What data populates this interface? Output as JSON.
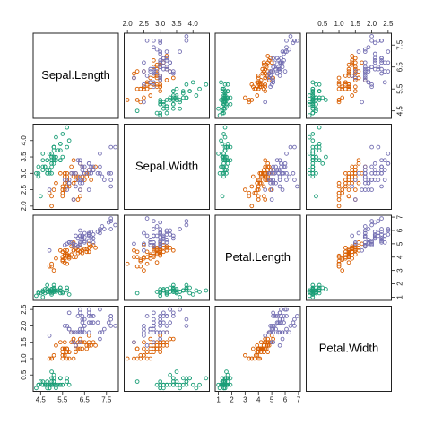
{
  "chart_data": {
    "type": "scatter_matrix",
    "variables": [
      "Sepal.Length",
      "Sepal.Width",
      "Petal.Length",
      "Petal.Width"
    ],
    "lims": [
      [
        4.16,
        8.04
      ],
      [
        1.9,
        4.5
      ],
      [
        0.76,
        7.14
      ],
      [
        0,
        2.6
      ]
    ],
    "ticks": [
      [
        4.5,
        5.5,
        6.5,
        7.5
      ],
      [
        {
          "value": 2,
          "label": "2.0"
        },
        2.5,
        {
          "value": 3,
          "label": "3.0"
        },
        3.5,
        {
          "value": 4,
          "label": "4.0"
        }
      ],
      [
        1,
        2,
        3,
        4,
        5,
        6,
        7
      ],
      [
        0.5,
        {
          "value": 1,
          "label": "1.0"
        },
        1.5,
        {
          "value": 2,
          "label": "2.0"
        },
        2.5
      ]
    ],
    "series": [
      {
        "color": "#1b9e77",
        "values": [
          [
            5.1,
            4.9,
            4.7,
            4.6,
            5.0,
            5.4,
            4.6,
            5.0,
            4.4,
            4.9,
            5.4,
            4.8,
            4.8,
            4.3,
            5.8,
            5.7,
            5.4,
            5.1,
            5.7,
            5.1,
            5.4,
            5.1,
            4.6,
            5.1,
            4.8,
            5.0,
            5.0,
            5.2,
            5.2,
            4.7,
            4.8,
            5.4,
            5.2,
            5.5,
            4.9,
            5.0,
            5.5,
            4.9,
            4.4,
            5.1,
            5.0,
            4.5,
            4.4,
            5.0,
            5.1,
            4.8,
            5.1,
            4.6,
            5.3,
            5.0
          ],
          [
            3.5,
            3.0,
            3.2,
            3.1,
            3.6,
            3.9,
            3.4,
            3.4,
            2.9,
            3.1,
            3.7,
            3.4,
            3.0,
            3.0,
            4.0,
            4.4,
            3.9,
            3.5,
            3.8,
            3.8,
            3.4,
            3.7,
            3.6,
            3.3,
            3.4,
            3.0,
            3.4,
            3.5,
            3.4,
            3.2,
            3.1,
            3.4,
            4.1,
            4.2,
            3.1,
            3.2,
            3.5,
            3.6,
            3.0,
            3.4,
            3.5,
            2.3,
            3.2,
            3.5,
            3.8,
            3.0,
            3.8,
            3.2,
            3.7,
            3.3
          ],
          [
            1.4,
            1.4,
            1.3,
            1.5,
            1.4,
            1.7,
            1.4,
            1.5,
            1.4,
            1.5,
            1.5,
            1.6,
            1.4,
            1.1,
            1.2,
            1.5,
            1.3,
            1.4,
            1.7,
            1.5,
            1.7,
            1.5,
            1.0,
            1.7,
            1.9,
            1.6,
            1.6,
            1.5,
            1.4,
            1.6,
            1.6,
            1.5,
            1.5,
            1.4,
            1.5,
            1.2,
            1.3,
            1.4,
            1.3,
            1.5,
            1.3,
            1.3,
            1.3,
            1.6,
            1.9,
            1.4,
            1.6,
            1.4,
            1.5,
            1.4
          ],
          [
            0.2,
            0.2,
            0.2,
            0.2,
            0.2,
            0.4,
            0.3,
            0.2,
            0.2,
            0.1,
            0.2,
            0.2,
            0.1,
            0.1,
            0.2,
            0.4,
            0.4,
            0.3,
            0.3,
            0.3,
            0.2,
            0.4,
            0.2,
            0.5,
            0.2,
            0.2,
            0.4,
            0.2,
            0.2,
            0.2,
            0.2,
            0.4,
            0.1,
            0.2,
            0.2,
            0.2,
            0.2,
            0.1,
            0.2,
            0.2,
            0.3,
            0.3,
            0.2,
            0.6,
            0.4,
            0.3,
            0.2,
            0.2,
            0.2,
            0.2
          ]
        ]
      },
      {
        "color": "#d95f02",
        "values": [
          [
            7.0,
            6.4,
            6.9,
            5.5,
            6.5,
            5.7,
            6.3,
            4.9,
            6.6,
            5.2,
            5.0,
            5.9,
            6.0,
            6.1,
            5.6,
            6.7,
            5.6,
            5.8,
            6.2,
            5.6,
            5.9,
            6.1,
            6.3,
            6.1,
            6.4,
            6.6,
            6.8,
            6.7,
            6.0,
            5.7,
            5.5,
            5.5,
            5.8,
            6.0,
            5.4,
            6.0,
            6.7,
            6.3,
            5.6,
            5.5,
            5.5,
            6.1,
            5.8,
            5.0,
            5.6,
            5.7,
            5.7,
            6.2,
            5.1,
            5.7
          ],
          [
            3.2,
            3.2,
            3.1,
            2.3,
            2.8,
            2.8,
            3.3,
            2.4,
            2.9,
            2.7,
            2.0,
            3.0,
            2.2,
            2.9,
            2.9,
            3.1,
            3.0,
            2.7,
            2.2,
            2.5,
            3.2,
            2.8,
            2.5,
            2.8,
            2.9,
            3.0,
            2.8,
            3.0,
            2.9,
            2.6,
            2.4,
            2.4,
            2.7,
            2.7,
            3.0,
            3.4,
            3.1,
            2.3,
            3.0,
            2.5,
            2.6,
            3.0,
            2.6,
            2.3,
            2.7,
            3.0,
            2.9,
            2.9,
            2.5,
            2.8
          ],
          [
            4.7,
            4.5,
            4.9,
            4.0,
            4.6,
            4.5,
            4.7,
            3.3,
            4.6,
            3.9,
            3.5,
            4.2,
            4.0,
            4.7,
            3.6,
            4.4,
            4.5,
            4.1,
            4.5,
            3.9,
            4.8,
            4.0,
            4.9,
            4.7,
            4.3,
            4.4,
            4.8,
            5.0,
            4.5,
            3.5,
            3.8,
            3.7,
            3.9,
            5.1,
            4.5,
            4.5,
            4.7,
            4.4,
            4.1,
            4.0,
            4.4,
            4.6,
            4.0,
            3.3,
            4.2,
            4.2,
            4.2,
            4.3,
            3.0,
            4.1
          ],
          [
            1.4,
            1.5,
            1.5,
            1.3,
            1.5,
            1.3,
            1.6,
            1.0,
            1.3,
            1.4,
            1.0,
            1.5,
            1.0,
            1.4,
            1.3,
            1.4,
            1.5,
            1.0,
            1.5,
            1.1,
            1.8,
            1.3,
            1.5,
            1.2,
            1.3,
            1.4,
            1.4,
            1.7,
            1.5,
            1.0,
            1.1,
            1.0,
            1.2,
            1.6,
            1.5,
            1.6,
            1.5,
            1.3,
            1.3,
            1.3,
            1.2,
            1.4,
            1.2,
            1.0,
            1.3,
            1.2,
            1.3,
            1.3,
            1.1,
            1.3
          ]
        ]
      },
      {
        "color": "#7570b3",
        "values": [
          [
            6.3,
            5.8,
            7.1,
            6.3,
            6.5,
            7.6,
            4.9,
            7.3,
            6.7,
            7.2,
            6.5,
            6.4,
            6.8,
            5.7,
            5.8,
            6.4,
            6.5,
            7.7,
            7.7,
            6.0,
            6.9,
            5.6,
            7.7,
            6.3,
            6.7,
            7.2,
            6.2,
            6.1,
            6.4,
            7.2,
            7.4,
            7.9,
            6.4,
            6.3,
            6.1,
            7.7,
            6.3,
            6.4,
            6.0,
            6.9,
            6.7,
            6.9,
            5.8,
            6.8,
            6.7,
            6.7,
            6.3,
            6.5,
            6.2,
            5.9
          ],
          [
            3.3,
            2.7,
            3.0,
            2.9,
            3.0,
            3.0,
            2.5,
            2.9,
            2.5,
            3.6,
            3.2,
            2.7,
            3.0,
            2.5,
            2.8,
            3.2,
            3.0,
            3.8,
            2.6,
            2.2,
            3.2,
            2.8,
            2.8,
            2.7,
            3.3,
            3.2,
            2.8,
            3.0,
            2.8,
            3.0,
            2.8,
            3.8,
            2.8,
            2.8,
            2.6,
            3.0,
            3.4,
            3.1,
            3.0,
            3.1,
            3.1,
            3.1,
            2.7,
            3.2,
            3.3,
            3.0,
            2.5,
            3.0,
            3.4,
            3.0
          ],
          [
            6.0,
            5.1,
            5.9,
            5.6,
            5.8,
            6.6,
            4.5,
            6.3,
            5.8,
            6.1,
            5.1,
            5.3,
            5.5,
            5.0,
            5.1,
            5.3,
            5.5,
            6.7,
            6.9,
            5.0,
            5.7,
            4.9,
            6.7,
            4.9,
            5.7,
            6.0,
            4.8,
            4.9,
            5.6,
            5.8,
            6.1,
            6.4,
            5.6,
            5.1,
            5.6,
            6.1,
            5.6,
            5.5,
            4.8,
            5.4,
            5.6,
            5.1,
            5.1,
            5.9,
            5.7,
            5.2,
            5.0,
            5.2,
            5.4,
            5.1
          ],
          [
            2.5,
            1.9,
            2.1,
            1.8,
            2.2,
            2.1,
            1.7,
            1.8,
            1.8,
            2.5,
            2.0,
            1.9,
            2.1,
            2.0,
            2.4,
            2.3,
            1.8,
            2.2,
            2.3,
            1.5,
            2.3,
            2.0,
            2.0,
            1.8,
            2.1,
            1.8,
            1.8,
            1.8,
            2.1,
            1.6,
            1.9,
            2.0,
            2.2,
            1.5,
            1.4,
            2.3,
            2.4,
            1.8,
            1.8,
            2.1,
            2.4,
            2.3,
            1.9,
            2.3,
            2.5,
            2.3,
            1.9,
            2.0,
            2.3,
            1.8
          ]
        ]
      }
    ]
  }
}
